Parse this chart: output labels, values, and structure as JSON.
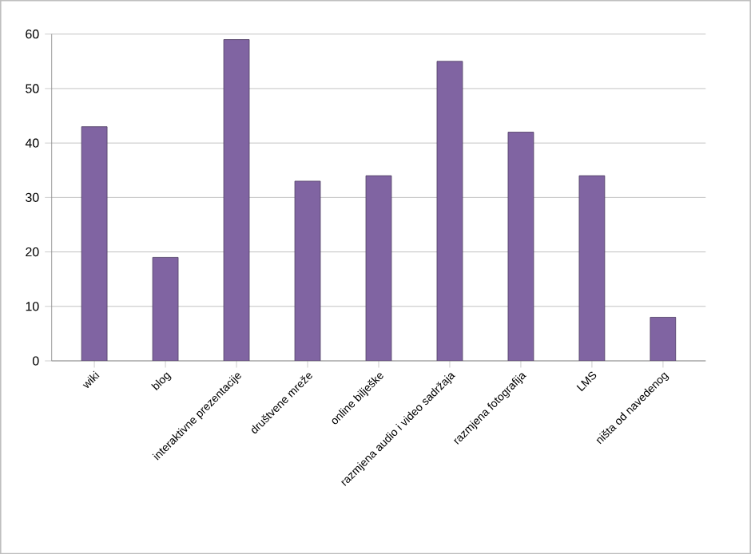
{
  "chart_data": {
    "type": "bar",
    "categories": [
      "wiki",
      "blog",
      "interaktivne prezentacije",
      "društvene mreže",
      "online bilješke",
      "razmjena audio i video sadržaja",
      "razmjena fotografija",
      "LMS",
      "ništa od navedenog"
    ],
    "values": [
      43,
      19,
      59,
      33,
      34,
      55,
      42,
      34,
      8
    ],
    "color": "#8064a2",
    "ylim": [
      0,
      60
    ],
    "yticks": [
      0,
      10,
      20,
      30,
      40,
      50,
      60
    ],
    "grid": "y"
  }
}
